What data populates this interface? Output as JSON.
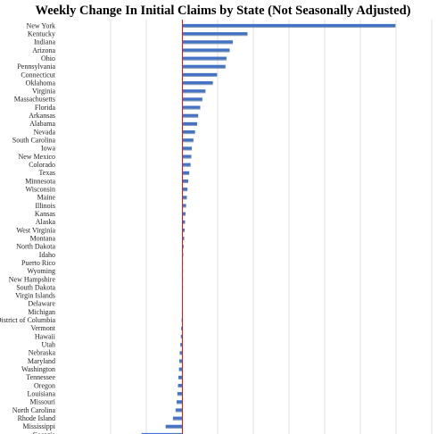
{
  "chart_data": {
    "type": "bar",
    "orientation": "horizontal",
    "title": "Weekly Change In Initial Claims by State (Not Seasonally Adjusted)",
    "xlabel": "",
    "ylabel": "",
    "grid": true,
    "baseline_color": "#cc2222",
    "bar_color": "#4472c4",
    "xlim": [
      -40000,
      240000
    ],
    "categories": [
      "New York",
      "Kentucky",
      "Indiana",
      "Arizona",
      "Ohio",
      "Pennsylvania",
      "Connecticut",
      "Oklahoma",
      "Virginia",
      "Massachusetts",
      "Florida",
      "Arkansas",
      "Alabama",
      "Nevada",
      "South Carolina",
      "Iowa",
      "New Mexico",
      "Colorado",
      "Texas",
      "Minnesota",
      "Wisconsin",
      "Maine",
      "Illinois",
      "Kansas",
      "Alaska",
      "West Virginia",
      "Montana",
      "North Dakota",
      "Idaho",
      "Puerto Rico",
      "Wyoming",
      "New Hampshire",
      "South Dakota",
      "Virgin Islands",
      "Delaware",
      "Michigan",
      "District of Columbia",
      "Vermont",
      "Hawaii",
      "Utah",
      "Nebraska",
      "Maryland",
      "Washington",
      "Tennessee",
      "Oregon",
      "Louisiana",
      "Missouri",
      "North Carolina",
      "Rhode Island",
      "Mississippi",
      "Georgia"
    ],
    "values": [
      203000,
      62000,
      48000,
      45000,
      42000,
      41000,
      33000,
      29000,
      22000,
      19000,
      17000,
      15000,
      14000,
      12000,
      10500,
      9000,
      8500,
      7800,
      6500,
      5500,
      4800,
      4200,
      3500,
      3000,
      2500,
      2100,
      1700,
      1200,
      800,
      400,
      200,
      100,
      0,
      -100,
      -200,
      -500,
      -800,
      -1200,
      -1500,
      -2000,
      -2500,
      -3000,
      -3300,
      -3800,
      -4200,
      -4800,
      -5500,
      -6500,
      -9000,
      -16000,
      -39000
    ]
  }
}
